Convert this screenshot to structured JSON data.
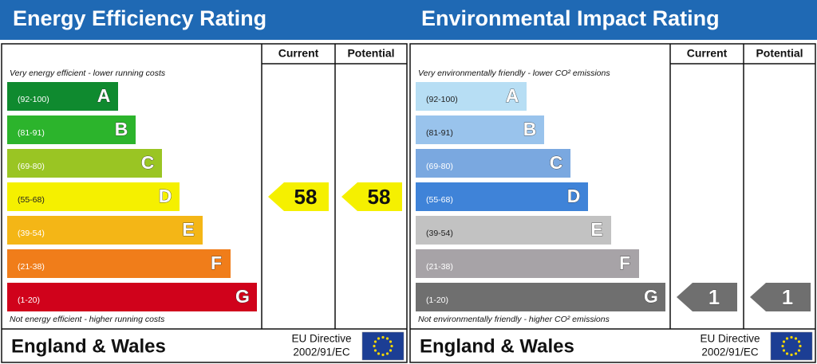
{
  "panels": [
    {
      "title": "Energy Efficiency Rating",
      "columns": [
        "Current",
        "Potential"
      ],
      "top_note": "Very energy efficient - lower running costs",
      "bottom_note": "Not energy efficient - higher running costs",
      "bands": [
        {
          "range": "(92-100)",
          "letter": "A"
        },
        {
          "range": "(81-91)",
          "letter": "B"
        },
        {
          "range": "(69-80)",
          "letter": "C"
        },
        {
          "range": "(55-68)",
          "letter": "D"
        },
        {
          "range": "(39-54)",
          "letter": "E"
        },
        {
          "range": "(21-38)",
          "letter": "F"
        },
        {
          "range": "(1-20)",
          "letter": "G"
        }
      ],
      "current": 58,
      "potential": 58,
      "footer": "England & Wales",
      "directive": [
        "EU Directive",
        "2002/91/EC"
      ]
    },
    {
      "title": "Environmental Impact Rating",
      "columns": [
        "Current",
        "Potential"
      ],
      "top_note": "Very environmentally friendly - lower CO² emissions",
      "bottom_note": "Not environmentally friendly - higher CO² emissions",
      "bands": [
        {
          "range": "(92-100)",
          "letter": "A"
        },
        {
          "range": "(81-91)",
          "letter": "B"
        },
        {
          "range": "(69-80)",
          "letter": "C"
        },
        {
          "range": "(55-68)",
          "letter": "D"
        },
        {
          "range": "(39-54)",
          "letter": "E"
        },
        {
          "range": "(21-38)",
          "letter": "F"
        },
        {
          "range": "(1-20)",
          "letter": "G"
        }
      ],
      "current": 1,
      "potential": 1,
      "footer": "England & Wales",
      "directive": [
        "EU Directive",
        "2002/91/EC"
      ]
    }
  ]
}
